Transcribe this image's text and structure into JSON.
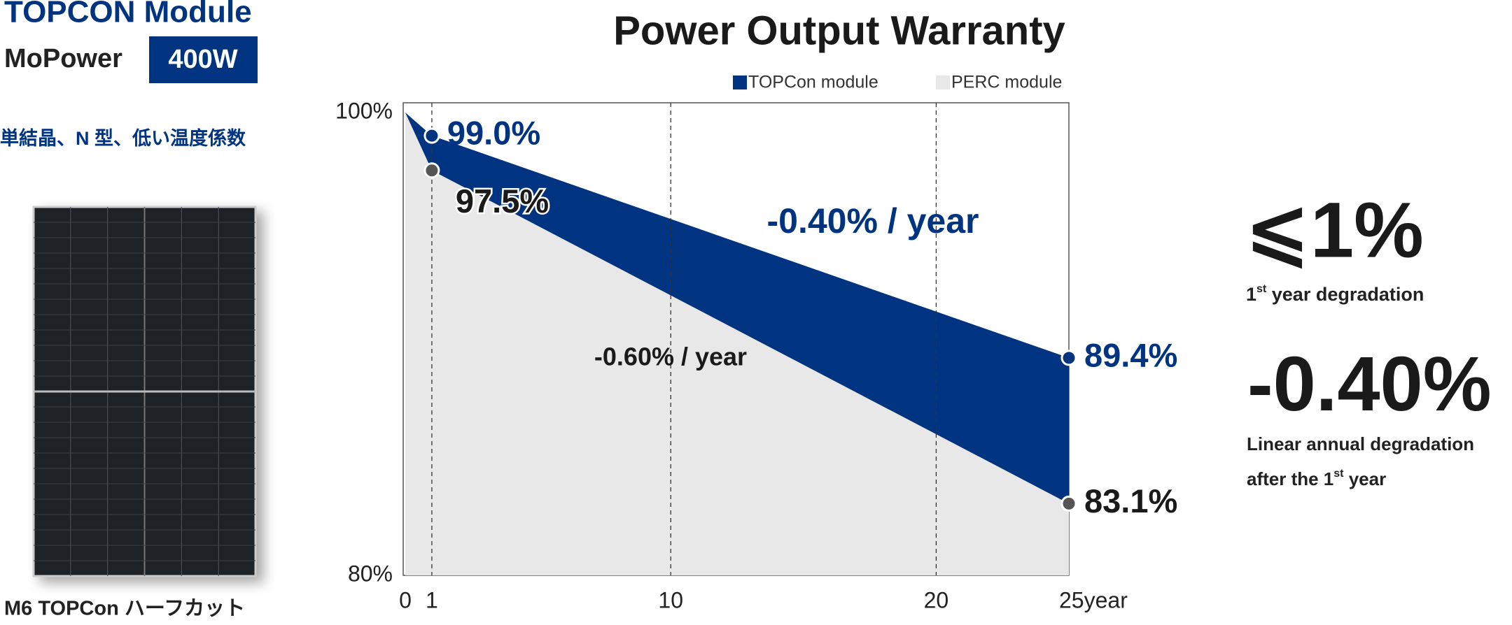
{
  "header": {
    "title": "TOPCON Module",
    "model": "MoPower",
    "power": "400W",
    "features": "単結晶、N 型、低い温度係数"
  },
  "panel": {
    "caption": "M6 TOPCon ハーフカット"
  },
  "chart_data": {
    "type": "area",
    "title": "Power Output Warranty",
    "x": [
      0,
      1,
      25
    ],
    "series": [
      {
        "name": "TOPCon module",
        "color": "#003380",
        "values": [
          100,
          99.0,
          89.4
        ],
        "value_labels": [
          null,
          "99.0%",
          "89.4%"
        ]
      },
      {
        "name": "PERC module",
        "color": "#e8e8e8",
        "values": [
          100,
          97.5,
          83.1
        ],
        "value_labels": [
          null,
          "97.5%",
          "83.1%"
        ]
      }
    ],
    "annotations": [
      "-0.40% / year",
      "-0.60% / year"
    ],
    "xlim": [
      0,
      25
    ],
    "xticks": [
      0,
      1,
      10,
      20,
      {
        "value": 25,
        "label": "25year"
      }
    ],
    "ylim": [
      80,
      100
    ],
    "yticks": [
      {
        "value": 80,
        "label": "80%"
      },
      {
        "value": 100,
        "label": "100%"
      }
    ],
    "grid": true
  },
  "stats": [
    {
      "value": "⩽1%",
      "label": {
        "before": "1",
        "sup": "st",
        "after": " year degradation"
      }
    },
    {
      "value": "-0.40%",
      "line1": "Linear annual degradation",
      "label": {
        "before": "after the 1",
        "sup": "st",
        "after": " year"
      }
    }
  ]
}
